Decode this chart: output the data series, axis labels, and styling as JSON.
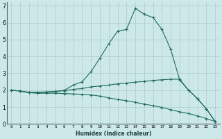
{
  "xlabel": "Humidex (Indice chaleur)",
  "background_color": "#cce8e8",
  "grid_color": "#aacccc",
  "line_color": "#1e6b5e",
  "xlim": [
    -0.5,
    23.5
  ],
  "ylim": [
    0,
    7.2
  ],
  "xticks": [
    0,
    1,
    2,
    3,
    4,
    5,
    6,
    7,
    8,
    9,
    10,
    11,
    12,
    13,
    14,
    15,
    16,
    17,
    18,
    19,
    20,
    21,
    22,
    23
  ],
  "yticks": [
    0,
    1,
    2,
    3,
    4,
    5,
    6,
    7
  ],
  "line1_x": [
    0,
    1,
    2,
    3,
    4,
    5,
    6,
    7,
    8,
    9,
    10,
    11,
    12,
    13,
    14,
    15,
    16,
    17,
    18,
    19,
    20,
    21,
    22,
    23
  ],
  "line1_y": [
    2.0,
    1.95,
    1.85,
    1.85,
    1.88,
    1.92,
    2.0,
    2.3,
    2.5,
    3.1,
    3.9,
    4.75,
    5.5,
    5.6,
    6.85,
    6.5,
    6.3,
    5.6,
    4.4,
    2.6,
    2.0,
    1.5,
    0.9,
    0.15
  ],
  "line2_x": [
    0,
    1,
    2,
    3,
    4,
    5,
    6,
    7,
    8,
    9,
    10,
    11,
    12,
    13,
    14,
    15,
    16,
    17,
    18,
    19,
    20,
    21,
    22,
    23
  ],
  "line2_y": [
    2.0,
    1.95,
    1.88,
    1.88,
    1.9,
    1.93,
    1.97,
    2.05,
    2.1,
    2.2,
    2.25,
    2.3,
    2.38,
    2.42,
    2.48,
    2.52,
    2.58,
    2.62,
    2.65,
    2.65,
    2.0,
    1.5,
    0.9,
    0.15
  ],
  "line3_x": [
    0,
    1,
    2,
    3,
    4,
    5,
    6,
    7,
    8,
    9,
    10,
    11,
    12,
    13,
    14,
    15,
    16,
    17,
    18,
    19,
    20,
    21,
    22,
    23
  ],
  "line3_y": [
    2.0,
    1.95,
    1.85,
    1.82,
    1.82,
    1.82,
    1.8,
    1.78,
    1.75,
    1.72,
    1.65,
    1.55,
    1.45,
    1.38,
    1.28,
    1.18,
    1.08,
    0.98,
    0.85,
    0.72,
    0.62,
    0.48,
    0.32,
    0.15
  ]
}
